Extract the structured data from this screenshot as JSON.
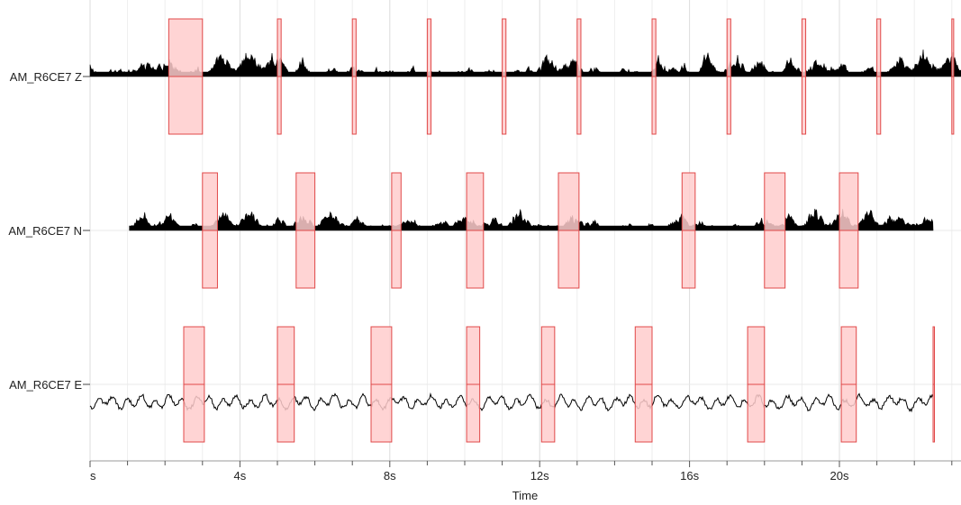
{
  "chart_data": {
    "type": "line",
    "title": "",
    "xlabel": "Time",
    "x_unit": "s",
    "xlim": [
      0,
      23.3
    ],
    "x_ticks": [
      0,
      4,
      8,
      12,
      16,
      20
    ],
    "x_tick_labels": [
      "s",
      "4s",
      "8s",
      "12s",
      "16s",
      "20s"
    ],
    "grid": true,
    "colors": {
      "trace": "#000000",
      "highlight_fill": "#ffcccc",
      "highlight_stroke": "#e04848",
      "grid": "#e4e4e4"
    },
    "series": [
      {
        "name": "AM_R6CE7 Z",
        "label": "AM_R6CE7 Z",
        "style": "filled-envelope",
        "data_start": 0.0,
        "data_end": 23.3,
        "highlights": [
          [
            2.1,
            3.0
          ],
          [
            5.0,
            5.1
          ],
          [
            7.0,
            7.1
          ],
          [
            9.0,
            9.1
          ],
          [
            11.0,
            11.1
          ],
          [
            13.0,
            13.1
          ],
          [
            15.0,
            15.1
          ],
          [
            17.0,
            17.1
          ],
          [
            19.0,
            19.1
          ],
          [
            21.0,
            21.1
          ],
          [
            23.0,
            23.05
          ]
        ]
      },
      {
        "name": "AM_R6CE7 N",
        "label": "AM_R6CE7 N",
        "style": "filled-envelope",
        "data_start": 1.05,
        "data_end": 22.5,
        "highlights": [
          [
            3.0,
            3.4
          ],
          [
            5.5,
            6.0
          ],
          [
            8.05,
            8.3
          ],
          [
            10.05,
            10.5
          ],
          [
            12.5,
            13.05
          ],
          [
            15.8,
            16.15
          ],
          [
            18.0,
            18.55
          ],
          [
            20.0,
            20.5
          ]
        ]
      },
      {
        "name": "AM_R6CE7 E",
        "label": "AM_R6CE7 E",
        "style": "line",
        "data_start": 0.0,
        "data_end": 22.5,
        "highlights": [
          [
            2.5,
            3.05
          ],
          [
            5.0,
            5.45
          ],
          [
            7.5,
            8.05
          ],
          [
            10.05,
            10.4
          ],
          [
            12.05,
            12.4
          ],
          [
            14.55,
            15.0
          ],
          [
            17.55,
            18.0
          ],
          [
            20.05,
            20.45
          ],
          [
            22.5,
            22.52
          ]
        ]
      }
    ]
  }
}
